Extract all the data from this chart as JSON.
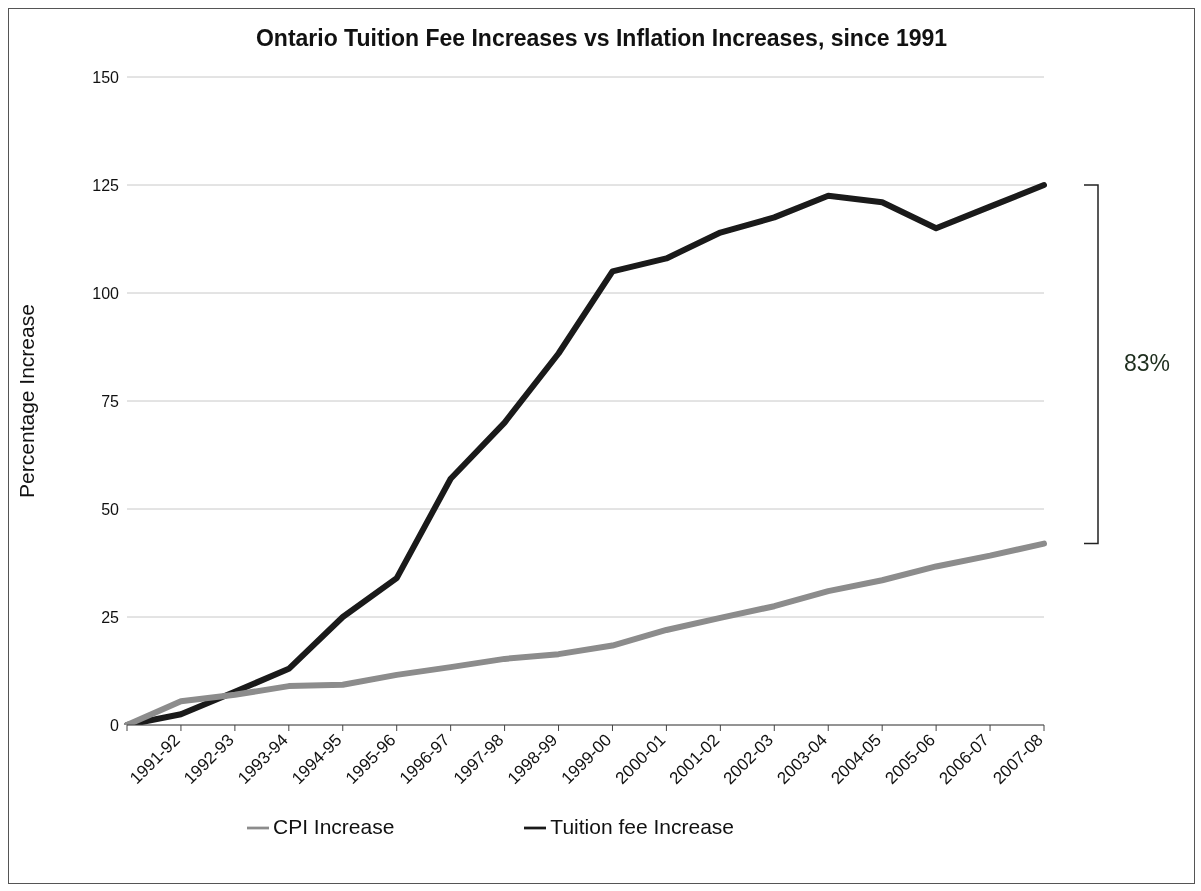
{
  "chart_data": {
    "type": "line",
    "title": "Ontario Tuition Fee Increases vs Inflation Increases, since 1991",
    "ylabel": "Percentage Increase",
    "categories": [
      null,
      "1991-92",
      "1992-93",
      "1993-94",
      "1994-95",
      "1995-96",
      "1996-97",
      "1997-98",
      "1998-99",
      "1999-00",
      "2000-01",
      "2001-02",
      "2002-03",
      "2003-04",
      "2004-05",
      "2005-06",
      "2006-07",
      "2007-08"
    ],
    "series": [
      {
        "name": "Tuition fee Increase",
        "color": "#1a1a1a",
        "values": [
          0,
          2.5,
          7.7,
          13,
          25,
          34,
          57,
          70,
          86,
          105,
          108,
          114,
          117.5,
          122.5,
          121,
          115,
          120,
          125
        ]
      },
      {
        "name": "CPI Increase",
        "color": "#8c8c8c",
        "values": [
          0,
          5.5,
          7,
          9,
          9.3,
          11.6,
          13.4,
          15.3,
          16.4,
          18.4,
          22,
          24.8,
          27.5,
          31,
          33.5,
          36.7,
          39.2,
          42
        ]
      }
    ],
    "ylim": [
      0,
      150
    ],
    "yticks": [
      0,
      25,
      50,
      75,
      100,
      125,
      150
    ],
    "grid": "y",
    "legend": "bottom",
    "marker": "none",
    "line_style": "solid",
    "annotations": [
      "83%"
    ]
  }
}
